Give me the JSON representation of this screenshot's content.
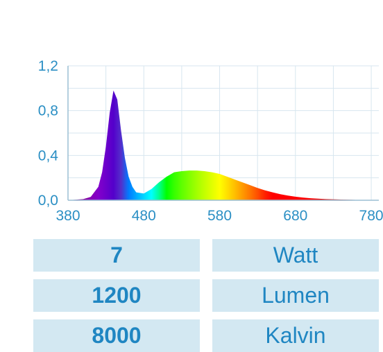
{
  "chart_data": {
    "type": "area",
    "title": "",
    "xlabel": "",
    "ylabel": "",
    "xlim": [
      380,
      790
    ],
    "ylim": [
      0,
      1.2
    ],
    "x_ticks": [
      "380",
      "480",
      "580",
      "680",
      "780"
    ],
    "y_ticks": [
      "0,0",
      "0,4",
      "0,8",
      "1,2"
    ],
    "grid": true,
    "fill": "visible-spectrum",
    "x": [
      380,
      400,
      410,
      420,
      425,
      430,
      435,
      440,
      445,
      450,
      455,
      460,
      465,
      470,
      480,
      490,
      500,
      510,
      520,
      530,
      540,
      550,
      560,
      570,
      580,
      590,
      600,
      610,
      620,
      630,
      640,
      650,
      660,
      670,
      680,
      690,
      700,
      720,
      740,
      760,
      780,
      790
    ],
    "series": [
      {
        "values": [
          0.0,
          0.01,
          0.03,
          0.12,
          0.25,
          0.48,
          0.78,
          0.98,
          0.9,
          0.62,
          0.38,
          0.21,
          0.12,
          0.07,
          0.06,
          0.1,
          0.16,
          0.21,
          0.25,
          0.26,
          0.265,
          0.265,
          0.26,
          0.25,
          0.235,
          0.21,
          0.185,
          0.16,
          0.135,
          0.11,
          0.088,
          0.07,
          0.054,
          0.042,
          0.032,
          0.024,
          0.018,
          0.01,
          0.006,
          0.003,
          0.002,
          0.001
        ]
      }
    ]
  },
  "specs": [
    {
      "value": "7",
      "unit": "Watt"
    },
    {
      "value": "1200",
      "unit": "Lumen"
    },
    {
      "value": "8000",
      "unit": "Kalvin"
    }
  ]
}
